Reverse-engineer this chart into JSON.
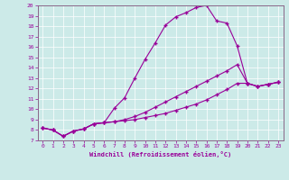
{
  "xlabel": "Windchill (Refroidissement éolien,°C)",
  "bg_color": "#cceae8",
  "line_color": "#990099",
  "grid_color": "#aacccc",
  "xlim": [
    -0.5,
    23.5
  ],
  "ylim": [
    7,
    20
  ],
  "xticks": [
    0,
    1,
    2,
    3,
    4,
    5,
    6,
    7,
    8,
    9,
    10,
    11,
    12,
    13,
    14,
    15,
    16,
    17,
    18,
    19,
    20,
    21,
    22,
    23
  ],
  "yticks": [
    7,
    8,
    9,
    10,
    11,
    12,
    13,
    14,
    15,
    16,
    17,
    18,
    19,
    20
  ],
  "curve1_x": [
    0,
    1,
    2,
    3,
    4,
    5,
    6,
    7,
    8,
    9,
    10,
    11,
    12,
    13,
    14,
    15,
    16,
    17,
    18,
    19,
    20,
    21,
    22,
    23
  ],
  "curve1_y": [
    8.2,
    8.0,
    7.4,
    7.9,
    8.1,
    8.6,
    8.7,
    10.1,
    11.1,
    13.0,
    14.8,
    16.4,
    18.1,
    18.9,
    19.3,
    19.8,
    20.0,
    18.5,
    18.3,
    16.1,
    12.5,
    12.2,
    12.4,
    12.6
  ],
  "curve2_x": [
    0,
    1,
    2,
    3,
    4,
    5,
    6,
    7,
    8,
    9,
    10,
    11,
    12,
    13,
    14,
    15,
    16,
    17,
    18,
    19,
    20,
    21,
    22,
    23
  ],
  "curve2_y": [
    8.2,
    8.0,
    7.4,
    7.9,
    8.1,
    8.6,
    8.7,
    8.8,
    9.0,
    9.3,
    9.7,
    10.2,
    10.7,
    11.2,
    11.7,
    12.2,
    12.7,
    13.2,
    13.7,
    14.3,
    12.5,
    12.2,
    12.4,
    12.6
  ],
  "curve3_x": [
    0,
    1,
    2,
    3,
    4,
    5,
    6,
    7,
    8,
    9,
    10,
    11,
    12,
    13,
    14,
    15,
    16,
    17,
    18,
    19,
    20,
    21,
    22,
    23
  ],
  "curve3_y": [
    8.2,
    8.0,
    7.4,
    7.9,
    8.1,
    8.6,
    8.7,
    8.8,
    8.9,
    9.0,
    9.2,
    9.4,
    9.6,
    9.9,
    10.2,
    10.5,
    10.9,
    11.4,
    11.9,
    12.5,
    12.5,
    12.2,
    12.4,
    12.6
  ]
}
